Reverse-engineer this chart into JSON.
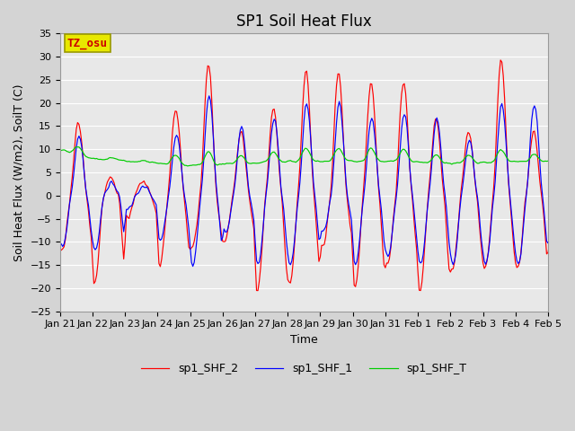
{
  "title": "SP1 Soil Heat Flux",
  "ylabel": "Soil Heat Flux (W/m2), SoilT (C)",
  "xlabel": "Time",
  "ylim": [
    -25,
    35
  ],
  "legend_labels": [
    "sp1_SHF_2",
    "sp1_SHF_1",
    "sp1_SHF_T"
  ],
  "line_colors": [
    "#ff0000",
    "#0000ff",
    "#00cc00"
  ],
  "bg_color": "#e8e8e8",
  "fig_bg_color": "#d4d4d4",
  "tz_label": "TZ_osu",
  "tz_bg": "#e8e800",
  "tz_fg": "#cc0000",
  "x_tick_labels": [
    "Jan 21",
    "Jan 22",
    "Jan 23",
    "Jan 24",
    "Jan 25",
    "Jan 26",
    "Jan 27",
    "Jan 28",
    "Jan 29",
    "Jan 30",
    "Jan 31",
    "Feb 1",
    "Feb 2",
    "Feb 3",
    "Feb 4",
    "Feb 5"
  ],
  "yticks": [
    -25,
    -20,
    -15,
    -10,
    -5,
    0,
    5,
    10,
    15,
    20,
    25,
    30,
    35
  ],
  "grid_color": "#ffffff",
  "title_fontsize": 12,
  "axis_fontsize": 9,
  "tick_fontsize": 8,
  "legend_fontsize": 9
}
